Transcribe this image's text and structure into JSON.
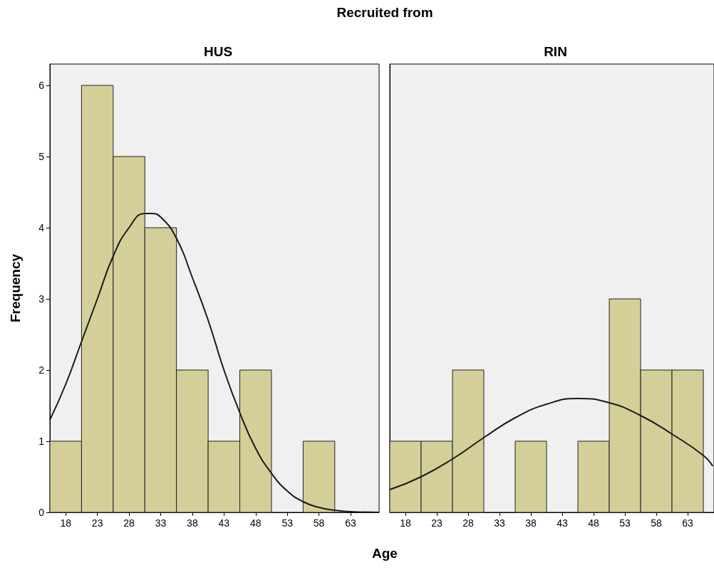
{
  "chart_data": [
    {
      "type": "histogram",
      "title": "HUS",
      "xlabel": "Age",
      "ylabel": "Frequency",
      "annotations": [
        "Recruited from"
      ],
      "series": [
        {
          "color": "#d4cf99",
          "bins": [
            15.5,
            20.5,
            25.5,
            30.5,
            35.5,
            40.5,
            45.5,
            50.5,
            55.5,
            60.5,
            65.5
          ],
          "values": [
            1,
            6,
            5,
            4,
            2,
            1,
            2,
            0,
            1,
            0
          ]
        },
        {
          "type": "line",
          "color": "#1a1a1a",
          "x": [
            15.5,
            18,
            20.5,
            23,
            25.5,
            28,
            30.5,
            31.5,
            33,
            35.5,
            38,
            40.5,
            43,
            45.5,
            48,
            50.5,
            53,
            55.5,
            58,
            60.5,
            63,
            67.5
          ],
          "values": [
            1.3,
            1.8,
            2.4,
            3.0,
            3.6,
            4.0,
            4.2,
            4.2,
            4.15,
            3.85,
            3.3,
            2.7,
            2.0,
            1.4,
            0.9,
            0.55,
            0.3,
            0.15,
            0.07,
            0.03,
            0.01,
            0
          ]
        }
      ],
      "xlim": [
        15.5,
        67.5
      ],
      "xticks": [
        18,
        23,
        28,
        33,
        38,
        43,
        48,
        53,
        58,
        63
      ],
      "ylim": [
        0,
        6.3
      ],
      "yticks": [
        0,
        1,
        2,
        3,
        4,
        5,
        6
      ],
      "marker": "none",
      "line_style": "solid"
    },
    {
      "type": "histogram",
      "title": "RIN",
      "series": [
        {
          "color": "#d4cf99",
          "bins": [
            15.5,
            20.5,
            25.5,
            30.5,
            35.5,
            40.5,
            45.5,
            50.5,
            55.5,
            60.5,
            65.5
          ],
          "values": [
            1,
            1,
            2,
            0,
            1,
            0,
            1,
            3,
            2,
            2
          ]
        },
        {
          "type": "line",
          "color": "#1a1a1a",
          "x": [
            15.5,
            20.5,
            25.5,
            30.5,
            35.5,
            40.5,
            45.5,
            50.5,
            55.5,
            60.5,
            65.5,
            67
          ],
          "values": [
            0.32,
            0.5,
            0.75,
            1.05,
            1.33,
            1.52,
            1.6,
            1.54,
            1.36,
            1.1,
            0.8,
            0.65
          ]
        }
      ],
      "xlim": [
        15.5,
        67.2
      ],
      "xticks": [
        18,
        23,
        28,
        33,
        38,
        43,
        48,
        53,
        58,
        63
      ],
      "ylim": [
        0,
        6.3
      ],
      "yticks": [
        0,
        1,
        2,
        3,
        4,
        5,
        6
      ],
      "tick_labels": "x",
      "marker": "none",
      "line_style": "solid"
    }
  ]
}
